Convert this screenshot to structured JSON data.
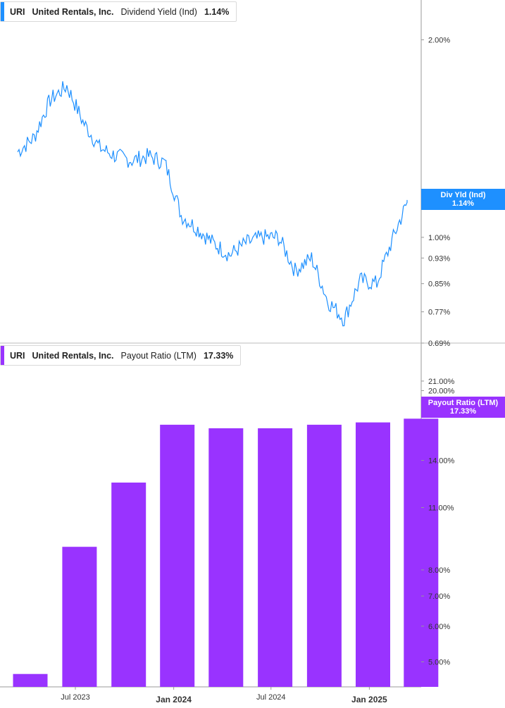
{
  "legends": {
    "top": {
      "ticker": "URI",
      "company": "United Rentals, Inc.",
      "metric": "Dividend Yield (Ind)",
      "value": "1.14%",
      "color": "#1e90ff"
    },
    "bottom": {
      "ticker": "URI",
      "company": "United Rentals, Inc.",
      "metric": "Payout Ratio (LTM)",
      "value": "17.33%",
      "color": "#9933ff"
    }
  },
  "tags": {
    "top": {
      "label": "Div Yld (Ind)",
      "value": "1.14%"
    },
    "bottom": {
      "label": "Payout Ratio (LTM)",
      "value": "17.33%"
    }
  },
  "chart_data": [
    {
      "type": "line",
      "series": [
        {
          "name": "Dividend Yield (Ind)",
          "color": "#1e90ff"
        }
      ],
      "x": [
        "2023-03",
        "2023-04",
        "2023-05",
        "2023-06",
        "2023-07",
        "2023-08",
        "2023-09",
        "2023-10",
        "2023-11",
        "2023-12",
        "2024-01",
        "2024-02",
        "2024-03",
        "2024-04",
        "2024-05",
        "2024-06",
        "2024-07",
        "2024-08",
        "2024-09",
        "2024-10",
        "2024-11",
        "2024-12",
        "2025-01",
        "2025-02",
        "2025-03"
      ],
      "y": [
        1.35,
        1.42,
        1.62,
        1.7,
        1.5,
        1.37,
        1.33,
        1.31,
        1.33,
        1.3,
        1.08,
        1.03,
        0.98,
        0.94,
        0.98,
        1.0,
        1.0,
        0.89,
        0.93,
        0.8,
        0.75,
        0.86,
        0.85,
        1.0,
        1.14
      ],
      "y_ticks": [
        "2.00%",
        "1.00%",
        "0.93%",
        "0.85%",
        "0.77%",
        "0.69%"
      ],
      "y_scale": "log",
      "ylim": [
        0.69,
        2.3
      ]
    },
    {
      "type": "bar",
      "series": [
        {
          "name": "Payout Ratio (LTM)",
          "color": "#9933ff"
        }
      ],
      "x": [
        "2023-03",
        "2023-06",
        "2023-09",
        "2023-12",
        "2024-03",
        "2024-06",
        "2024-09",
        "2024-12",
        "2025-03"
      ],
      "values": [
        4.7,
        9.0,
        12.5,
        16.8,
        16.5,
        16.5,
        16.8,
        17.0,
        17.33
      ],
      "y_ticks": [
        "21.00%",
        "20.00%",
        "14.00%",
        "11.00%",
        "8.00%",
        "7.00%",
        "6.00%",
        "5.00%"
      ],
      "y_scale": "log",
      "ylim": [
        4.4,
        25.5
      ]
    }
  ],
  "x_axis": {
    "labels": [
      {
        "text": "Jul 2023",
        "major": false
      },
      {
        "text": "Jan 2024",
        "major": true
      },
      {
        "text": "Jul 2024",
        "major": false
      },
      {
        "text": "Jan 2025",
        "major": true
      }
    ]
  }
}
